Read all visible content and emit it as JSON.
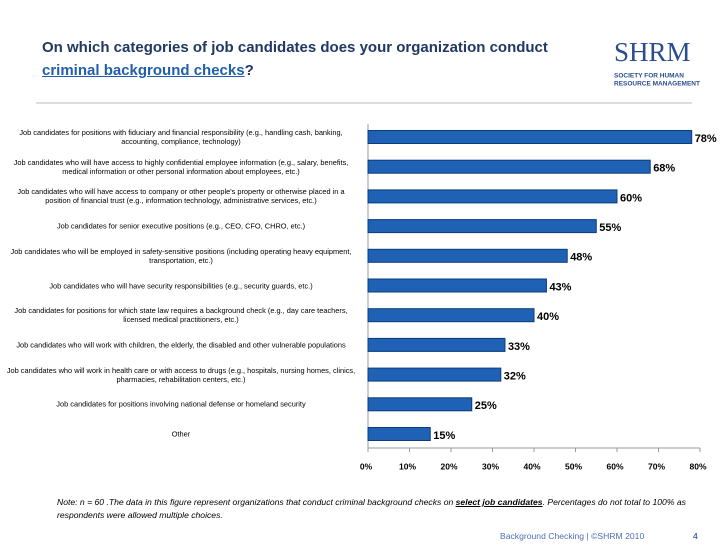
{
  "header": {
    "title_start": "On which categories of job candidates does your organization conduct",
    "title_underlined": "criminal background checks",
    "title_end": "?",
    "logo": "SHRM",
    "logo_sub_1": "SOCIETY FOR HUMAN",
    "logo_sub_2": "RESOURCE MANAGEMENT"
  },
  "chart_data": {
    "type": "hbar",
    "categories": [
      "Job candidates for positions with fiduciary and financial responsibility (e.g., handling cash, banking,  accounting, compliance, technology)",
      "Job candidates who will have access to highly confidential employee information (e.g., salary, benefits, medical information or other personal information about employees, etc.)",
      "Job candidates who will have access to company or other people's property or otherwise placed in a position of financial trust (e.g., information technology, administrative services, etc.)",
      "Job candidates for senior executive positions (e.g., CEO, CFO, CHRO, etc.)",
      "Job candidates who will be employed in safety-sensitive positions (including operating heavy equipment, transportation, etc.)",
      "Job candidates who will have security responsibilities (e.g., security guards, etc.)",
      "Job candidates for positions for which state law requires a background check (e.g., day care teachers, licensed medical practitioners, etc.)",
      "Job candidates who will work with children, the elderly, the disabled and other vulnerable populations",
      "Job candidates who will work in health care or with access to drugs (e.g., hospitals, nursing homes, clinics, pharmacies, rehabilitation centers, etc.)",
      "Job candidates for positions involving national defense or homeland security",
      "Other"
    ],
    "values": [
      78,
      68,
      60,
      55,
      48,
      43,
      40,
      33,
      32,
      25,
      15
    ],
    "value_labels": [
      "78%",
      "68%",
      "60%",
      "55%",
      "48%",
      "43%",
      "40%",
      "33%",
      "32%",
      "25%",
      "15%"
    ],
    "color": "#1f62b5",
    "xlim": [
      0,
      80
    ],
    "xticks": [
      {
        "value": 0,
        "label": "0%"
      },
      {
        "value": 10,
        "label": "10%"
      },
      {
        "value": 20,
        "label": "20%"
      },
      {
        "value": 30,
        "label": "30%"
      },
      {
        "value": 40,
        "label": "40%"
      },
      {
        "value": 50,
        "label": "50%"
      },
      {
        "value": 60,
        "label": "60%"
      },
      {
        "value": 70,
        "label": "70%"
      },
      {
        "value": 80,
        "label": "80%"
      }
    ]
  },
  "footer": {
    "note_start": "Note: n = 60 .The data in this figure represent organizations that conduct criminal background checks on ",
    "note_emphasis": "select job candidates",
    "note_end": ". Percentages do not total to 100% as respondents were allowed multiple choices.",
    "source": "Background Checking | ©SHRM 2010",
    "page": "4"
  }
}
